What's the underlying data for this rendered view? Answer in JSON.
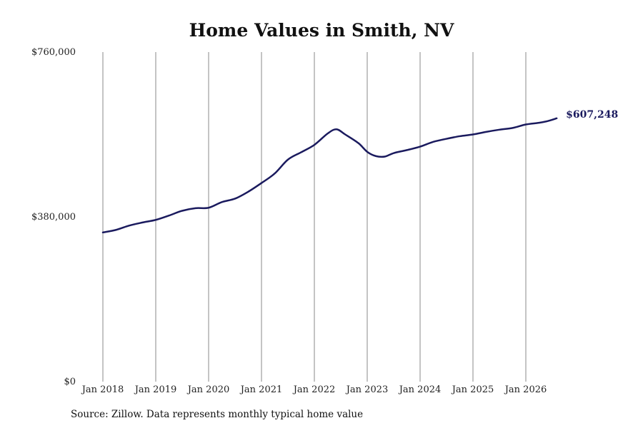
{
  "chart_data": {
    "type": "line",
    "title": "Home Values in Smith, NV",
    "xlabel": "",
    "ylabel": "",
    "x_tick_labels": [
      "Jan 2018",
      "Jan 2019",
      "Jan 2020",
      "Jan 2021",
      "Jan 2022",
      "Jan 2023",
      "Jan 2024",
      "Jan 2025",
      "Jan 2026"
    ],
    "y_tick_labels": [
      "$0",
      "$380,000",
      "$760,000"
    ],
    "y_ticks": [
      0,
      380000,
      760000
    ],
    "ylim": [
      0,
      760000
    ],
    "xlim": [
      "2018-01",
      "2026-08"
    ],
    "grid": "vertical lines at x ticks",
    "series": [
      {
        "color": "#1a1a5e",
        "points": [
          [
            "2018-01",
            344000
          ],
          [
            "2018-04",
            350000
          ],
          [
            "2018-07",
            360000
          ],
          [
            "2018-10",
            367000
          ],
          [
            "2019-01",
            373000
          ],
          [
            "2019-04",
            383000
          ],
          [
            "2019-07",
            394000
          ],
          [
            "2019-10",
            400000
          ],
          [
            "2020-01",
            401000
          ],
          [
            "2020-04",
            414000
          ],
          [
            "2020-07",
            422000
          ],
          [
            "2020-10",
            438000
          ],
          [
            "2021-01",
            458000
          ],
          [
            "2021-04",
            480000
          ],
          [
            "2021-07",
            512000
          ],
          [
            "2021-10",
            529000
          ],
          [
            "2022-01",
            546000
          ],
          [
            "2022-04",
            572000
          ],
          [
            "2022-06",
            582000
          ],
          [
            "2022-08",
            570000
          ],
          [
            "2022-11",
            550000
          ],
          [
            "2023-01",
            530000
          ],
          [
            "2023-03",
            520000
          ],
          [
            "2023-05",
            519000
          ],
          [
            "2023-07",
            527000
          ],
          [
            "2023-10",
            534000
          ],
          [
            "2024-01",
            542000
          ],
          [
            "2024-04",
            553000
          ],
          [
            "2024-07",
            560000
          ],
          [
            "2024-10",
            566000
          ],
          [
            "2025-01",
            570000
          ],
          [
            "2025-04",
            576000
          ],
          [
            "2025-07",
            581000
          ],
          [
            "2025-10",
            585000
          ],
          [
            "2026-01",
            593000
          ],
          [
            "2026-04",
            597000
          ],
          [
            "2026-06",
            601000
          ],
          [
            "2026-08",
            607248
          ]
        ]
      }
    ],
    "end_label": "$607,248",
    "source": "Source: Zillow. Data represents monthly typical home value"
  }
}
